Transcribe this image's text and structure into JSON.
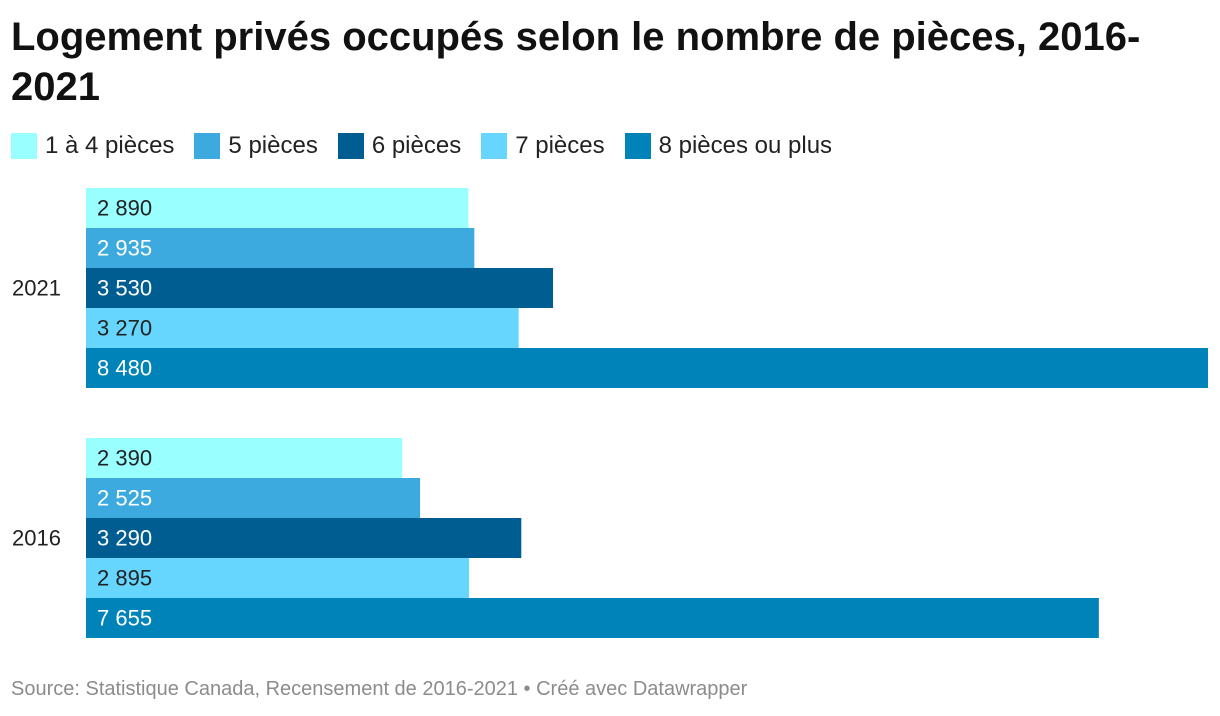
{
  "title": "Logement privés occupés selon le nombre de pièces, 2016-2021",
  "source": "Source: Statistique Canada, Recensement de 2016-2021 • Créé avec Datawrapper",
  "chart_data": {
    "type": "bar",
    "orientation": "horizontal",
    "title": "Logement privés occupés selon le nombre de pièces, 2016-2021",
    "categories": [
      "2021",
      "2016"
    ],
    "series": [
      {
        "name": "1 à 4 pièces",
        "color": "#99ffff",
        "values": [
          2890,
          2390
        ],
        "labels": [
          "2 890",
          "2 390"
        ]
      },
      {
        "name": "5 pièces",
        "color": "#3caade",
        "values": [
          2935,
          2525
        ],
        "labels": [
          "2 935",
          "2 525"
        ]
      },
      {
        "name": "6 pièces",
        "color": "#005d92",
        "values": [
          3530,
          3290
        ],
        "labels": [
          "3 530",
          "3 290"
        ]
      },
      {
        "name": "7 pièces",
        "color": "#66d6ff",
        "values": [
          3270,
          2895
        ],
        "labels": [
          "3 270",
          "2 895"
        ]
      },
      {
        "name": "8 pièces ou plus",
        "color": "#0083b8",
        "values": [
          8480,
          7655
        ],
        "labels": [
          "8 480",
          "7 655"
        ]
      }
    ],
    "xlim": [
      0,
      8480
    ],
    "grid": false,
    "legend_position": "top-left"
  }
}
